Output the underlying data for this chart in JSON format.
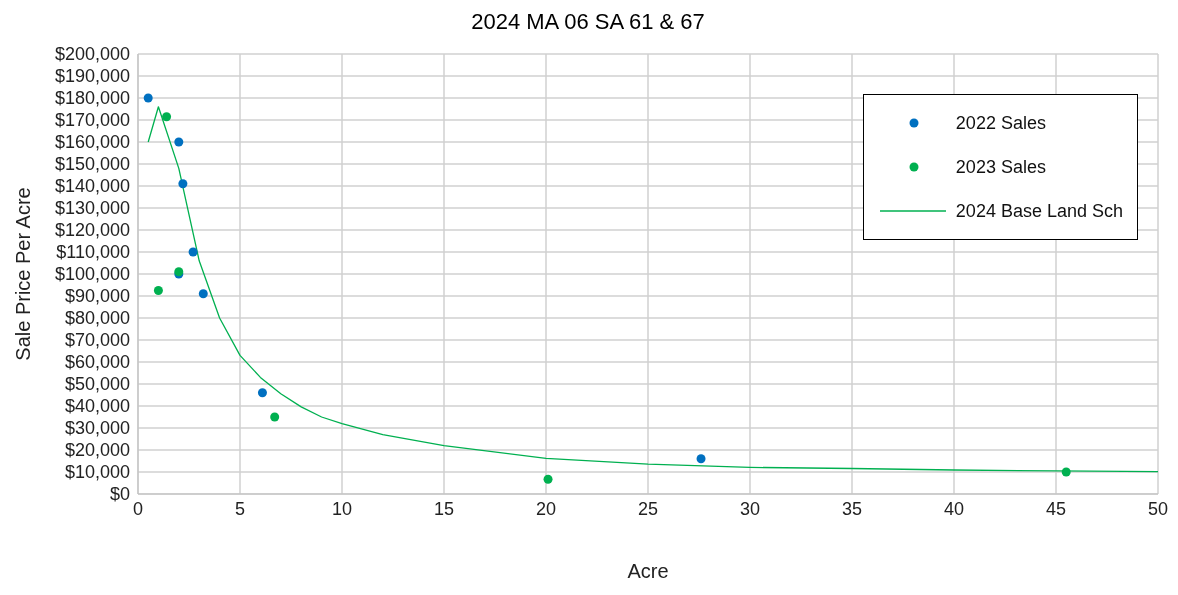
{
  "chart_data": {
    "type": "scatter",
    "title": "2024 MA 06 SA 61 & 67",
    "xlabel": "Acre",
    "ylabel": "Sale Price Per Acre",
    "xlim": [
      0,
      50
    ],
    "xticks": [
      0,
      5,
      10,
      15,
      20,
      25,
      30,
      35,
      40,
      45,
      50
    ],
    "ylim": [
      0,
      200000
    ],
    "yticks": [
      {
        "value": 0,
        "label": "$0"
      },
      {
        "value": 10000,
        "label": "$10,000"
      },
      {
        "value": 20000,
        "label": "$20,000"
      },
      {
        "value": 30000,
        "label": "$30,000"
      },
      {
        "value": 40000,
        "label": "$40,000"
      },
      {
        "value": 50000,
        "label": "$50,000"
      },
      {
        "value": 60000,
        "label": "$60,000"
      },
      {
        "value": 70000,
        "label": "$70,000"
      },
      {
        "value": 80000,
        "label": "$80,000"
      },
      {
        "value": 90000,
        "label": "$90,000"
      },
      {
        "value": 100000,
        "label": "$100,000"
      },
      {
        "value": 110000,
        "label": "$110,000"
      },
      {
        "value": 120000,
        "label": "$120,000"
      },
      {
        "value": 130000,
        "label": "$130,000"
      },
      {
        "value": 140000,
        "label": "$140,000"
      },
      {
        "value": 150000,
        "label": "$150,000"
      },
      {
        "value": 160000,
        "label": "$160,000"
      },
      {
        "value": 170000,
        "label": "$170,000"
      },
      {
        "value": 180000,
        "label": "$180,000"
      },
      {
        "value": 190000,
        "label": "$190,000"
      },
      {
        "value": 200000,
        "label": "$200,000"
      }
    ],
    "grid": true,
    "legend": "top right",
    "marker": "circle",
    "series": [
      {
        "name": "2022 Sales",
        "color": "#0070c0",
        "x": [
          0.5,
          2,
          2.2,
          2.7,
          2,
          3.2,
          6.1,
          27.6
        ],
        "values": [
          180000,
          160000,
          141000,
          110000,
          100000,
          91000,
          46000,
          16000
        ]
      },
      {
        "name": "2023 Sales",
        "color": "#00b050",
        "x": [
          1.4,
          1,
          2,
          6.7,
          20.1,
          45.5
        ],
        "values": [
          171500,
          92500,
          101000,
          35000,
          6700,
          10000
        ]
      },
      {
        "name": "2024 Base Land Sch",
        "type": "line",
        "color": "#00b050",
        "marker": "none",
        "line_style": "solid",
        "x": [
          0.5,
          1,
          2,
          3,
          4,
          5,
          6,
          7,
          8,
          9,
          10,
          12,
          15,
          20,
          25,
          30,
          35,
          40,
          45,
          50
        ],
        "values": [
          160000,
          176000,
          148000,
          106000,
          80000,
          63000,
          53000,
          45600,
          39600,
          35000,
          32000,
          27000,
          22000,
          16200,
          13600,
          12100,
          11600,
          10900,
          10500,
          10200
        ]
      }
    ]
  }
}
